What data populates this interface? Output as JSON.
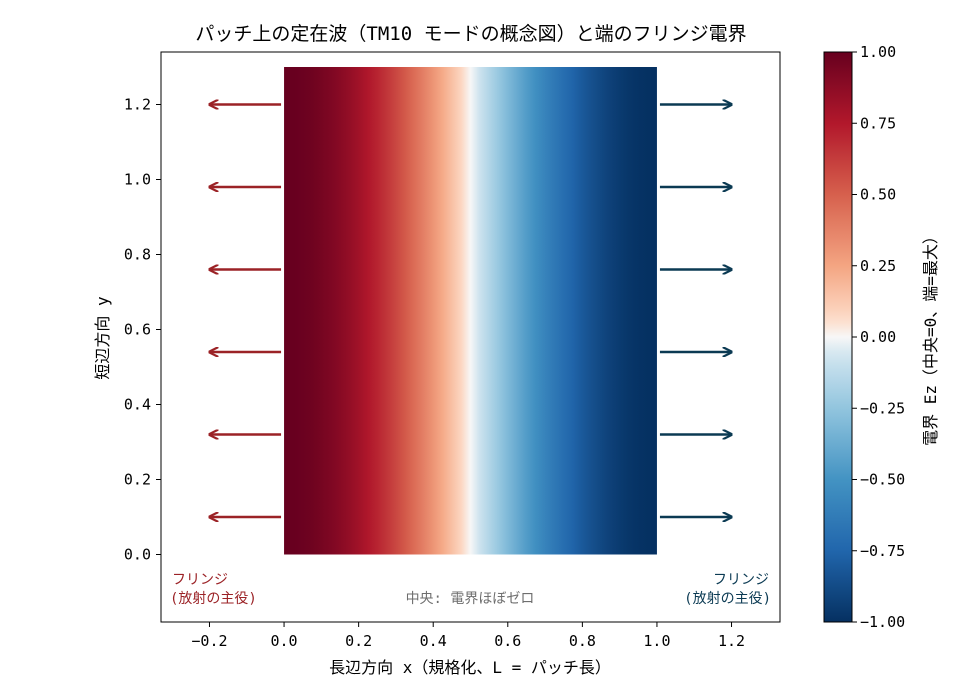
{
  "chart_data": {
    "type": "heatmap",
    "title": "パッチ上の定在波（TM10 モードの概念図）と端のフリンジ電界",
    "xlabel": "長辺方向 x（規格化、L = パッチ長）",
    "ylabel": "短辺方向 y",
    "xlim": [
      -0.33,
      1.33
    ],
    "ylim": [
      -0.18,
      1.34
    ],
    "x_ticks": [
      "−0.2",
      "0.0",
      "0.2",
      "0.4",
      "0.6",
      "0.8",
      "1.0",
      "1.2"
    ],
    "x_tick_values": [
      -0.2,
      0.0,
      0.2,
      0.4,
      0.6,
      0.8,
      1.0,
      1.2
    ],
    "y_ticks": [
      "0.0",
      "0.2",
      "0.4",
      "0.6",
      "0.8",
      "1.0",
      "1.2"
    ],
    "y_tick_values": [
      0.0,
      0.2,
      0.4,
      0.6,
      0.8,
      1.0,
      1.2
    ],
    "patch": {
      "x": [
        0,
        1
      ],
      "y": [
        0,
        1.3
      ],
      "field": "Ez = cos(pi x)"
    },
    "colormap": "RdBu_r",
    "colorbar": {
      "label": "電界 Ez（中央=0、端=最大）",
      "range": [
        -1,
        1
      ],
      "ticks": [
        "1.00",
        "0.75",
        "0.50",
        "0.25",
        "0.00",
        "−0.25",
        "−0.50",
        "−0.75",
        "−1.00"
      ],
      "tick_values": [
        1.0,
        0.75,
        0.5,
        0.25,
        0.0,
        -0.25,
        -0.5,
        -0.75,
        -1.0
      ]
    },
    "arrows": {
      "y_positions": [
        0.1,
        0.32,
        0.54,
        0.76,
        0.98,
        1.2
      ],
      "left": {
        "from": 0.0,
        "to": -0.2,
        "color": "#9b2226"
      },
      "right": {
        "from": 1.0,
        "to": 1.2,
        "color": "#0b3a53"
      }
    },
    "annotations": {
      "left_line1": "フリンジ",
      "left_line2": "(放射の主役)",
      "right_line1": "フリンジ",
      "right_line2": "(放射の主役)",
      "center": "中央: 電界ほぼゼロ"
    },
    "colors": {
      "left_text": "#9b2226",
      "right_text": "#0b3a53",
      "center_text": "#6e6e6e"
    }
  }
}
